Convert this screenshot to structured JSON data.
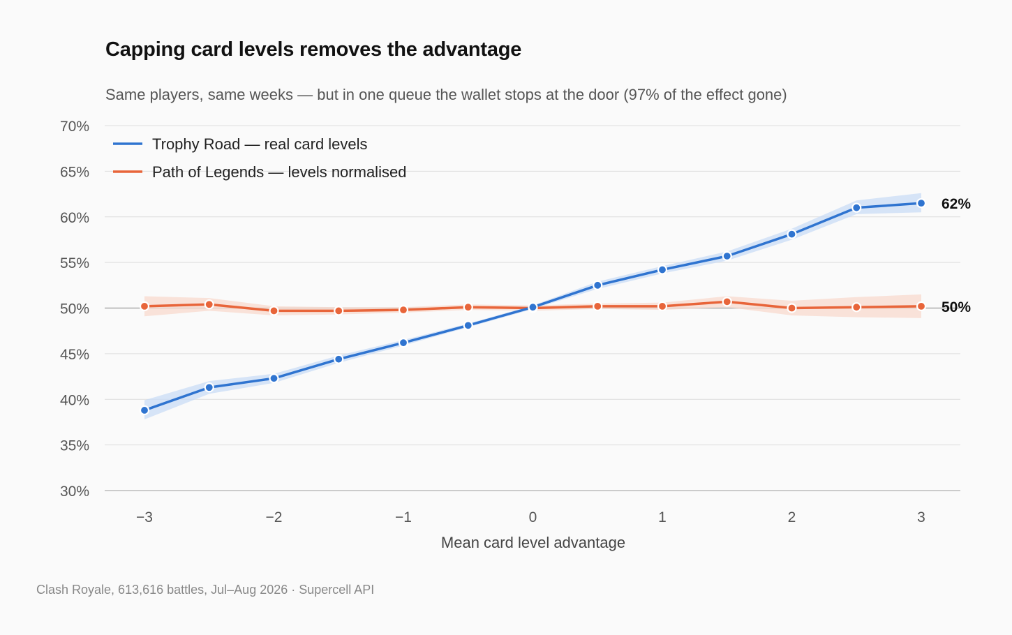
{
  "title": "Capping card levels removes the advantage",
  "subtitle": "Same players, same weeks — but in one queue the wallet stops at the door (97% of the effect gone)",
  "source": "Clash Royale, 613,616 battles, Jul–Aug 2026 · Supercell API",
  "colors": {
    "trophy_road": "#2f74d0",
    "trophy_road_band": "#c9dcf5",
    "path_of_legends": "#e8653a",
    "path_of_legends_band": "#f8d9cd",
    "grid": "#dddddd",
    "baseline": "#bbbbbb",
    "reference_line": "#aaaaaa",
    "background": "#fafafa"
  },
  "chart_data": {
    "type": "line",
    "xlabel": "Mean card level advantage",
    "ylabel": "",
    "xlim": [
      -3.3,
      3.3
    ],
    "ylim": [
      30,
      70
    ],
    "x": [
      -3,
      -2.5,
      -2,
      -1.5,
      -1,
      -0.5,
      0,
      0.5,
      1,
      1.5,
      2,
      2.5,
      3
    ],
    "x_ticks": [
      -3,
      -2,
      -1,
      0,
      1,
      2,
      3
    ],
    "x_tick_labels": [
      "−3",
      "−2",
      "−1",
      "0",
      "1",
      "2",
      "3"
    ],
    "y_ticks": [
      30,
      35,
      40,
      45,
      50,
      55,
      60,
      65,
      70
    ],
    "y_tick_labels": [
      "30%",
      "35%",
      "40%",
      "45%",
      "50%",
      "55%",
      "60%",
      "65%",
      "70%"
    ],
    "reference_line_y": 50,
    "grid": true,
    "legend_position": "top-left",
    "series": [
      {
        "name": "Trophy Road — real card levels",
        "color_key": "trophy_road",
        "values": [
          38.8,
          41.3,
          42.3,
          44.4,
          46.2,
          48.1,
          50.1,
          52.5,
          54.2,
          55.7,
          58.1,
          61.0,
          61.5
        ],
        "ci_lower": [
          37.8,
          40.6,
          41.8,
          44.0,
          45.9,
          47.9,
          49.9,
          52.1,
          53.8,
          55.2,
          57.5,
          60.3,
          60.5
        ],
        "ci_upper": [
          39.9,
          42.0,
          42.8,
          44.8,
          46.5,
          48.3,
          50.3,
          52.9,
          54.6,
          56.2,
          58.7,
          61.8,
          62.6
        ],
        "end_label": "62%"
      },
      {
        "name": "Path of Legends — levels normalised",
        "color_key": "path_of_legends",
        "values": [
          50.2,
          50.4,
          49.7,
          49.7,
          49.8,
          50.1,
          50.0,
          50.2,
          50.2,
          50.7,
          50.0,
          50.1,
          50.2
        ],
        "ci_lower": [
          49.1,
          49.7,
          49.2,
          49.3,
          49.5,
          49.8,
          49.7,
          49.9,
          49.8,
          50.1,
          49.2,
          49.0,
          48.9
        ],
        "ci_upper": [
          51.3,
          51.1,
          50.2,
          50.1,
          50.1,
          50.4,
          50.3,
          50.5,
          50.6,
          51.3,
          50.8,
          51.2,
          51.5
        ],
        "end_label": "50%"
      }
    ]
  }
}
